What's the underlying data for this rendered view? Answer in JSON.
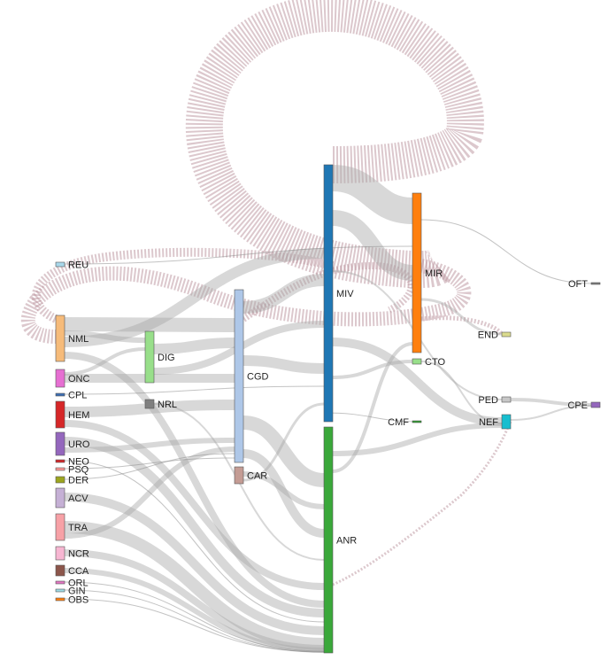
{
  "nodes": [
    {
      "id": "REU",
      "label": "REU",
      "color": "#a8d8ea"
    },
    {
      "id": "NML",
      "label": "NML",
      "color": "#f6bb7a"
    },
    {
      "id": "ONC",
      "label": "ONC",
      "color": "#e66fd2"
    },
    {
      "id": "CPL",
      "label": "CPL",
      "color": "#3d6fb5"
    },
    {
      "id": "HEM",
      "label": "HEM",
      "color": "#d62728"
    },
    {
      "id": "URO",
      "label": "URO",
      "color": "#9467bd"
    },
    {
      "id": "NEO",
      "label": "NEO",
      "color": "#d62728"
    },
    {
      "id": "PSQ",
      "label": "PSQ",
      "color": "#ff9896"
    },
    {
      "id": "DER",
      "label": "DER",
      "color": "#9da61f"
    },
    {
      "id": "ACV",
      "label": "ACV",
      "color": "#c5b0d5"
    },
    {
      "id": "TRA",
      "label": "TRA",
      "color": "#f7a1a6"
    },
    {
      "id": "NCR",
      "label": "NCR",
      "color": "#f7b6d2"
    },
    {
      "id": "CCA",
      "label": "CCA",
      "color": "#8c564b"
    },
    {
      "id": "ORL",
      "label": "ORL",
      "color": "#e377c2"
    },
    {
      "id": "GIN",
      "label": "GIN",
      "color": "#9edae5"
    },
    {
      "id": "OBS",
      "label": "OBS",
      "color": "#ff7f0e"
    },
    {
      "id": "DIG",
      "label": "DIG",
      "color": "#98df8a"
    },
    {
      "id": "NRL",
      "label": "NRL",
      "color": "#7f7f7f"
    },
    {
      "id": "CGD",
      "label": "CGD",
      "color": "#aec7e8"
    },
    {
      "id": "CAR",
      "label": "CAR",
      "color": "#c49c94"
    },
    {
      "id": "MIV",
      "label": "MIV",
      "color": "#1f77b4"
    },
    {
      "id": "ANR",
      "label": "ANR",
      "color": "#3aa83a"
    },
    {
      "id": "MIR",
      "label": "MIR",
      "color": "#ff7f0e"
    },
    {
      "id": "CTO",
      "label": "CTO",
      "color": "#98df8a"
    },
    {
      "id": "CMF",
      "label": "CMF",
      "color": "#2ca02c"
    },
    {
      "id": "END",
      "label": "END",
      "color": "#dbdb8d"
    },
    {
      "id": "PED",
      "label": "PED",
      "color": "#c7c7c7"
    },
    {
      "id": "NEF",
      "label": "NEF",
      "color": "#17becf"
    },
    {
      "id": "OFT",
      "label": "OFT",
      "color": "#7f7f7f"
    },
    {
      "id": "CPE",
      "label": "CPE",
      "color": "#9467bd"
    }
  ]
}
